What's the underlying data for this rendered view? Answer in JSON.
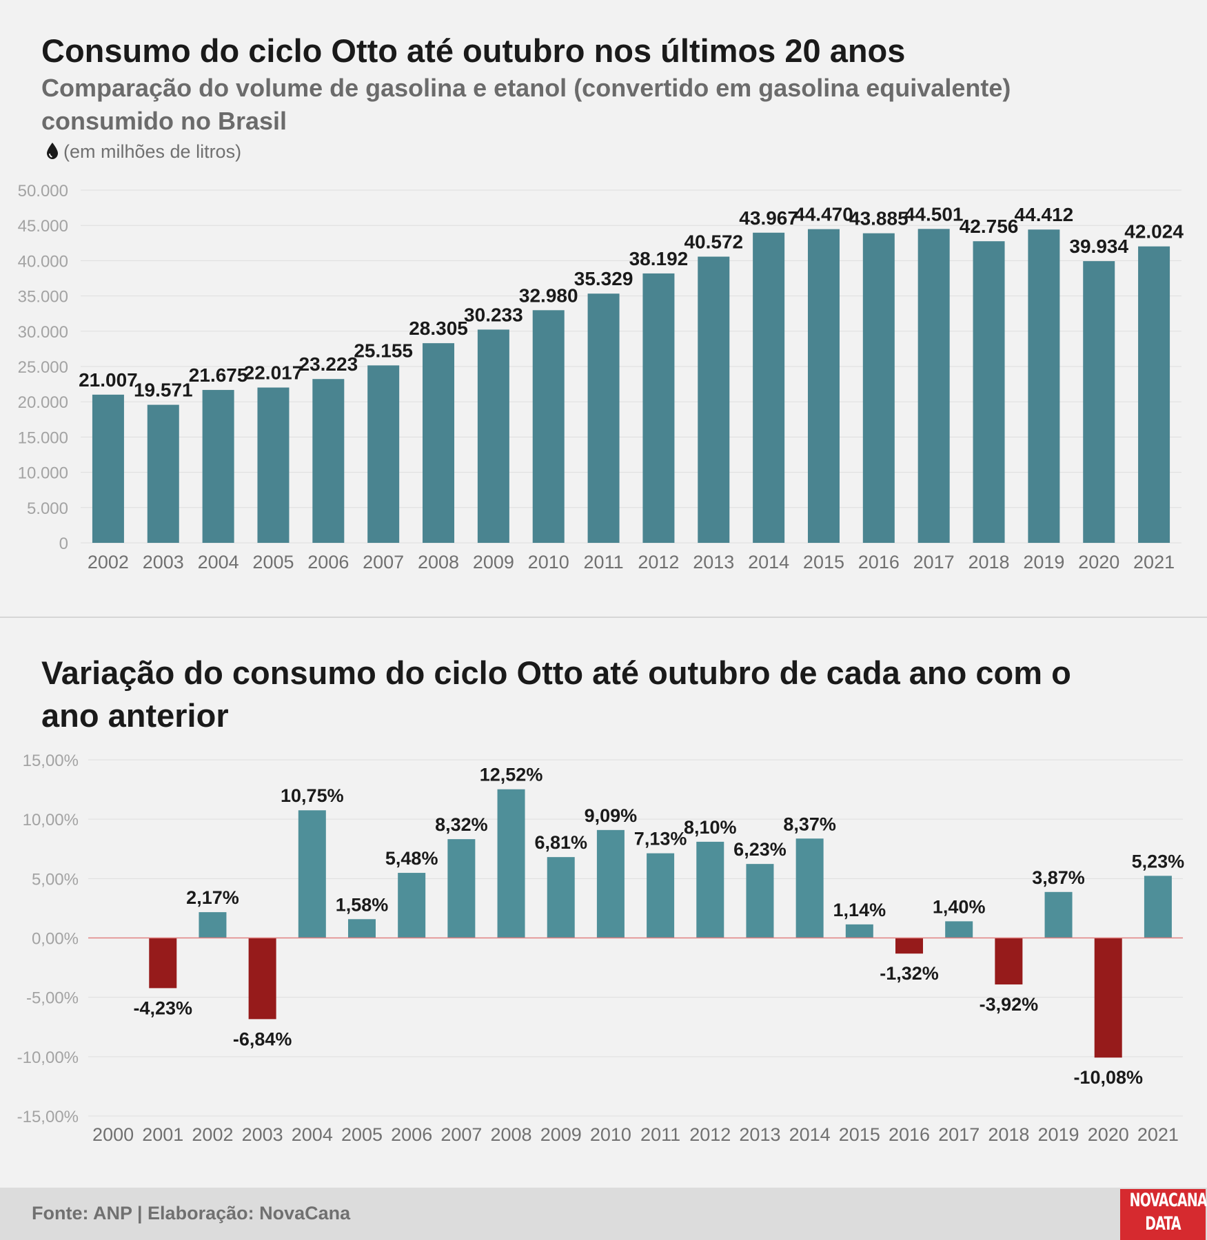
{
  "header": {
    "title": "Consumo do ciclo Otto até outubro nos últimos 20 anos",
    "subtitle": "Comparação do volume de gasolina e etanol (convertido em gasolina equivalente) consumido no Brasil",
    "unit_note": "(em milhões de litros)",
    "unit_icon": "drop-icon"
  },
  "section2": {
    "title": "Variação do consumo do ciclo Otto até outubro de cada ano com o ano anterior"
  },
  "footer": {
    "source": "Fonte: ANP | Elaboração: NovaCana",
    "logo_line1": "NOVACANA",
    "logo_line2": "DATA",
    "logo_color": "#d62a2f"
  },
  "chart_data": [
    {
      "type": "bar",
      "categories": [
        "2002",
        "2003",
        "2004",
        "2005",
        "2006",
        "2007",
        "2008",
        "2009",
        "2010",
        "2011",
        "2012",
        "2013",
        "2014",
        "2015",
        "2016",
        "2017",
        "2018",
        "2019",
        "2020",
        "2021"
      ],
      "values": [
        21007,
        19571,
        21675,
        22017,
        23223,
        25155,
        28305,
        30233,
        32980,
        35329,
        38192,
        40572,
        43967,
        44470,
        43885,
        44501,
        42756,
        44412,
        39934,
        42024
      ],
      "data_labels": [
        "21.007",
        "19.571",
        "21.675",
        "22.017",
        "23.223",
        "25.155",
        "28.305",
        "30.233",
        "32.980",
        "35.329",
        "38.192",
        "40.572",
        "43.967",
        "44.470",
        "43.885",
        "44.501",
        "42.756",
        "44.412",
        "39.934",
        "42.024"
      ],
      "yticks": [
        "0",
        "5.000",
        "10.000",
        "15.000",
        "20.000",
        "25.000",
        "30.000",
        "35.000",
        "40.000",
        "45.000",
        "50.000"
      ],
      "ylim": [
        0,
        50000
      ],
      "bar_color": "#4a8490",
      "grid": true
    },
    {
      "type": "bar",
      "categories": [
        "2000",
        "2001",
        "2002",
        "2003",
        "2004",
        "2005",
        "2006",
        "2007",
        "2008",
        "2009",
        "2010",
        "2011",
        "2012",
        "2013",
        "2014",
        "2015",
        "2016",
        "2017",
        "2018",
        "2019",
        "2020",
        "2021"
      ],
      "values": [
        null,
        -4.23,
        2.17,
        -6.84,
        10.75,
        1.58,
        5.48,
        8.32,
        12.52,
        6.81,
        9.09,
        7.13,
        8.1,
        6.23,
        8.37,
        1.14,
        -1.32,
        1.4,
        -3.92,
        3.87,
        -10.08,
        5.23
      ],
      "data_labels": [
        "",
        "-4,23%",
        "2,17%",
        "-6,84%",
        "10,75%",
        "1,58%",
        "5,48%",
        "8,32%",
        "12,52%",
        "6,81%",
        "9,09%",
        "7,13%",
        "8,10%",
        "6,23%",
        "8,37%",
        "1,14%",
        "-1,32%",
        "1,40%",
        "-3,92%",
        "3,87%",
        "-10,08%",
        "5,23%"
      ],
      "yticks": [
        "-15,00%",
        "-10,00%",
        "-5,00%",
        "0,00%",
        "5,00%",
        "10,00%",
        "15,00%"
      ],
      "ylim": [
        -15,
        15
      ],
      "positive_color": "#4f8f99",
      "negative_color": "#961b1b",
      "zero_line_color": "#e08080",
      "grid": true
    }
  ]
}
